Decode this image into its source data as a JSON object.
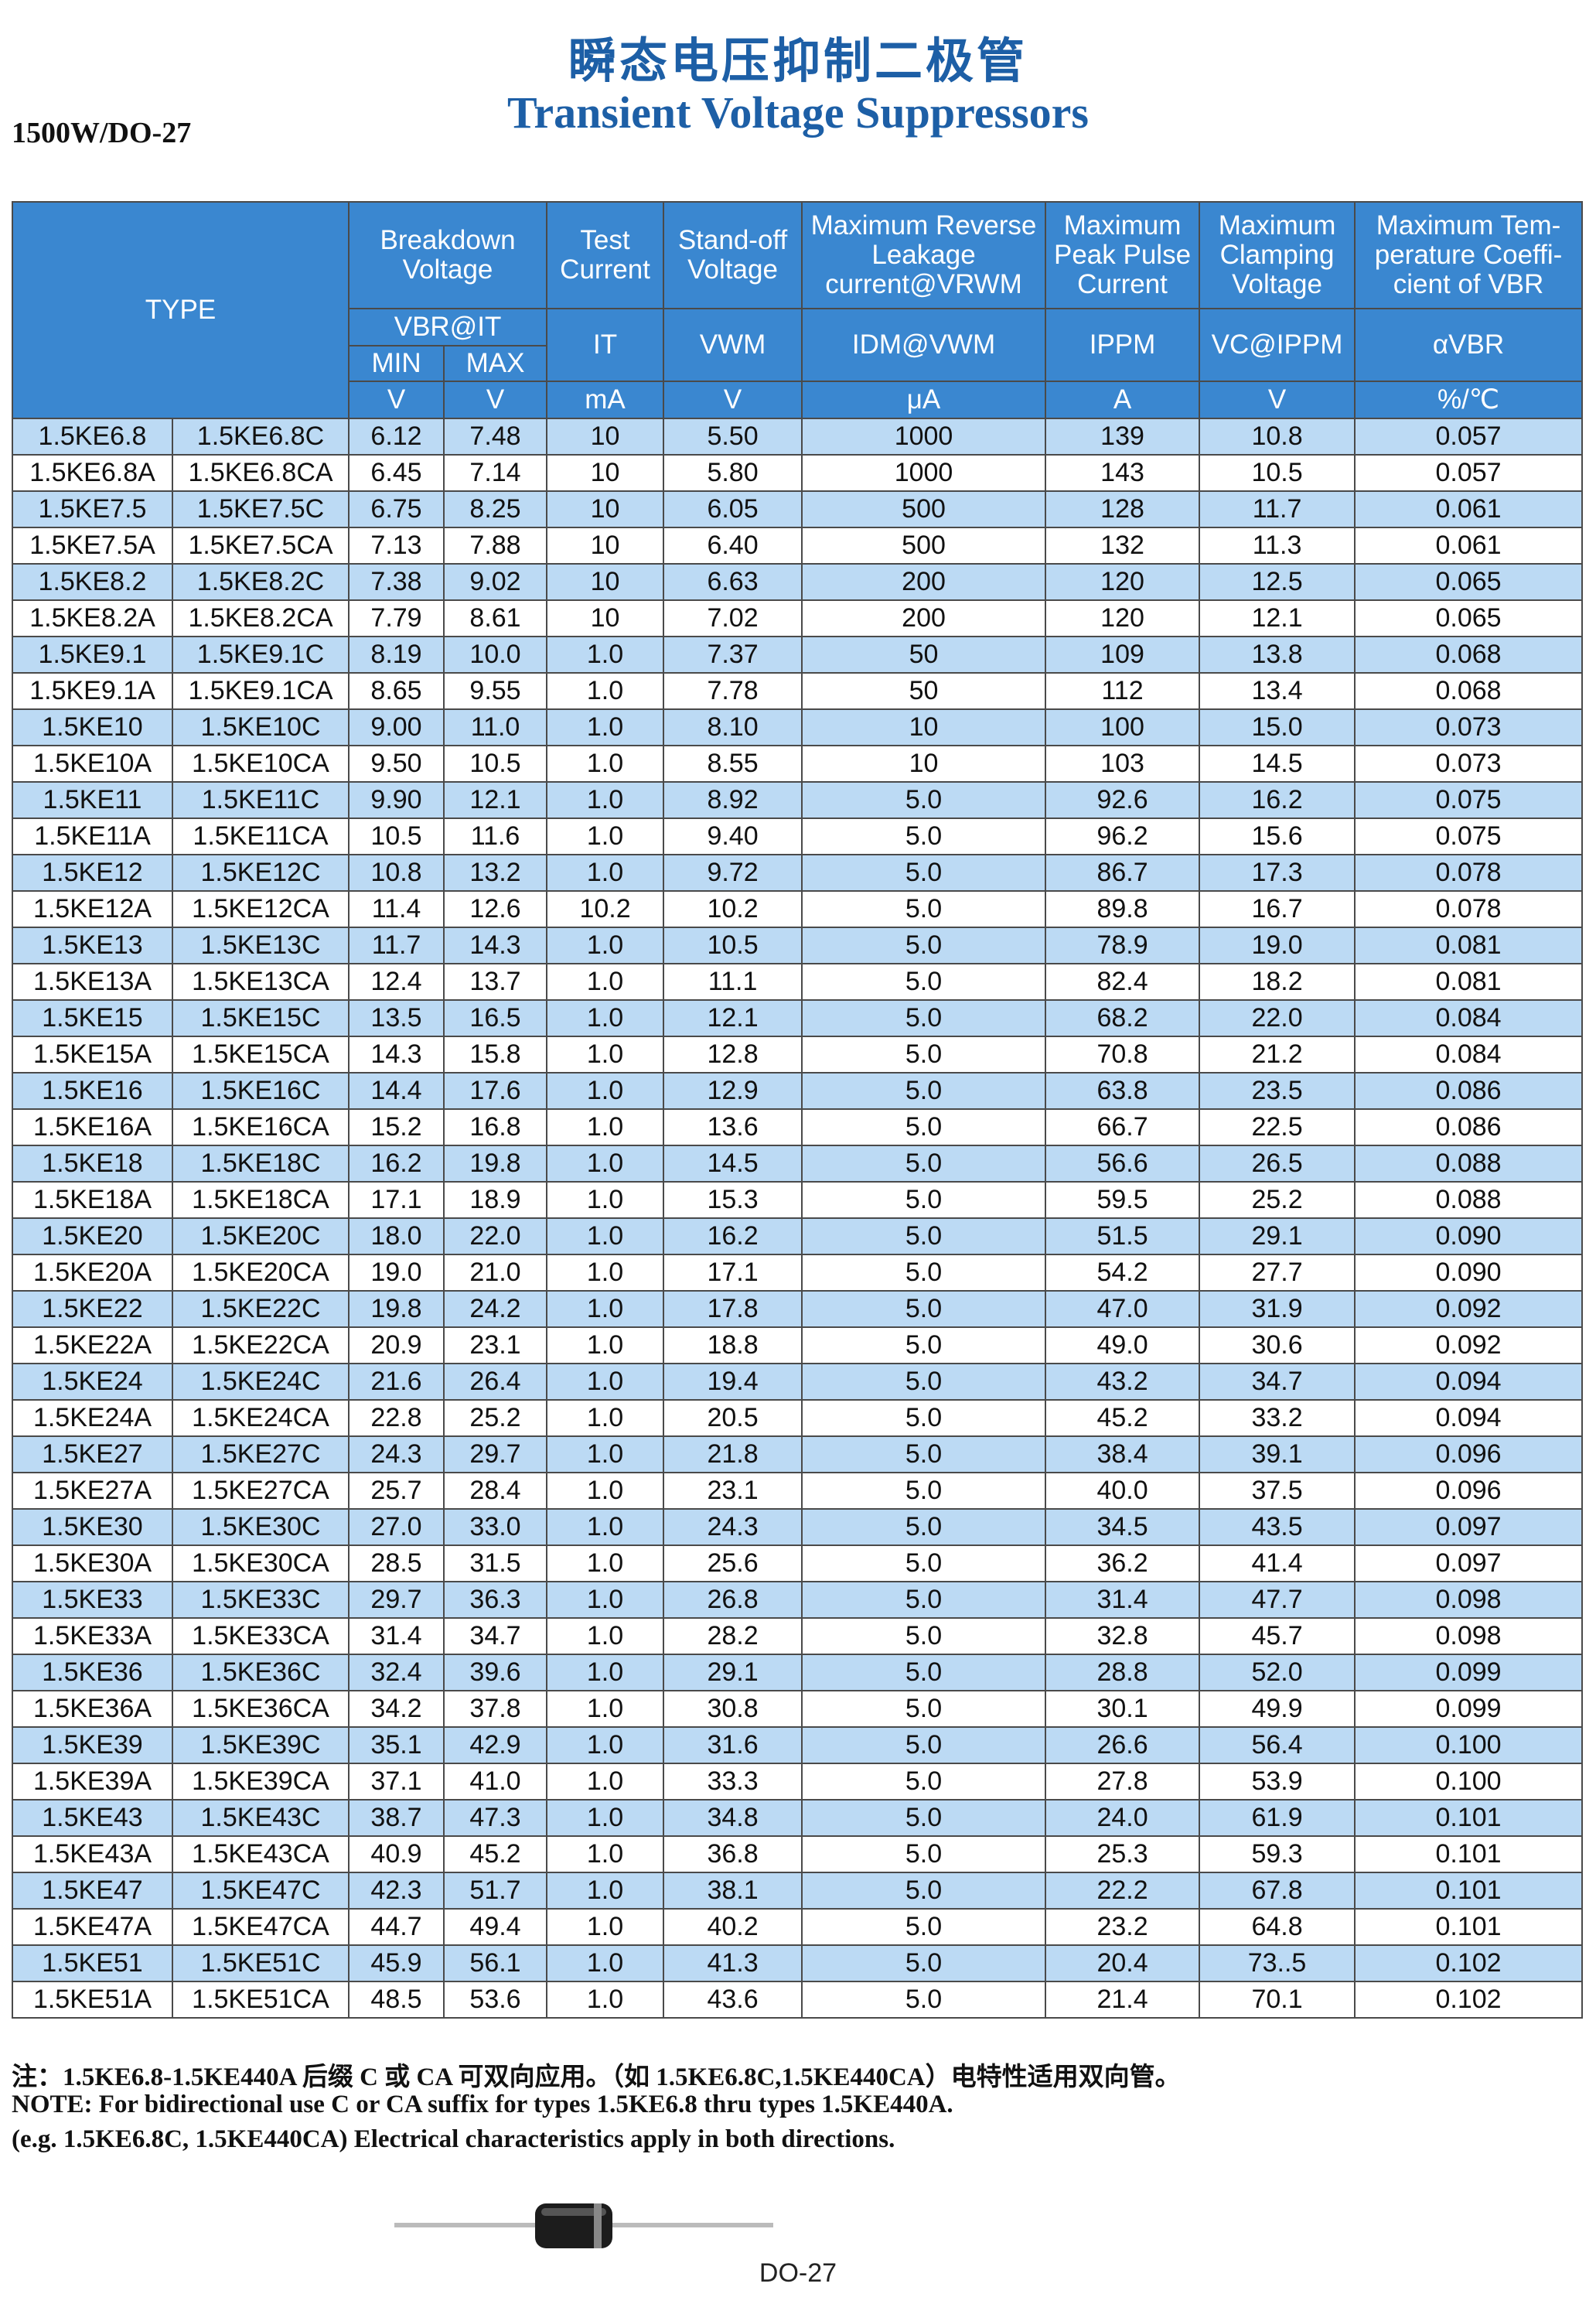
{
  "header": {
    "title_cn": "瞬态电压抑制二极管",
    "title_en": "Transient Voltage Suppressors",
    "model": "1500W/DO-27"
  },
  "table": {
    "head": {
      "type": "TYPE",
      "breakdown": "Breakdown\nVoltage",
      "test": "Test\nCurrent",
      "standoff": "Stand-off\nVoltage",
      "leakage": "Maximum Reverse\nLeakage\ncurrent@VRWM",
      "ippm": "Maximum\nPeak Pulse\nCurrent",
      "clamp": "Maximum\nClamping\nVoltage",
      "coef": "Maximum Tem-\nperature Coeffi-\ncient of VBR",
      "vbr": "VBR@IT",
      "it": "IT",
      "vwm": "VWM",
      "idm": "IDM@VWM",
      "ippm_sym": "IPPM",
      "vc": "VC@IPPM",
      "avbr": "αVBR",
      "min": "MIN",
      "max": "MAX",
      "units": [
        "V",
        "V",
        "mA",
        "V",
        "μA",
        "A",
        "V",
        "%/℃"
      ]
    },
    "rows": [
      [
        "1.5KE6.8",
        "1.5KE6.8C",
        "6.12",
        "7.48",
        "10",
        "5.50",
        "1000",
        "139",
        "10.8",
        "0.057"
      ],
      [
        "1.5KE6.8A",
        "1.5KE6.8CA",
        "6.45",
        "7.14",
        "10",
        "5.80",
        "1000",
        "143",
        "10.5",
        "0.057"
      ],
      [
        "1.5KE7.5",
        "1.5KE7.5C",
        "6.75",
        "8.25",
        "10",
        "6.05",
        "500",
        "128",
        "11.7",
        "0.061"
      ],
      [
        "1.5KE7.5A",
        "1.5KE7.5CA",
        "7.13",
        "7.88",
        "10",
        "6.40",
        "500",
        "132",
        "11.3",
        "0.061"
      ],
      [
        "1.5KE8.2",
        "1.5KE8.2C",
        "7.38",
        "9.02",
        "10",
        "6.63",
        "200",
        "120",
        "12.5",
        "0.065"
      ],
      [
        "1.5KE8.2A",
        "1.5KE8.2CA",
        "7.79",
        "8.61",
        "10",
        "7.02",
        "200",
        "120",
        "12.1",
        "0.065"
      ],
      [
        "1.5KE9.1",
        "1.5KE9.1C",
        "8.19",
        "10.0",
        "1.0",
        "7.37",
        "50",
        "109",
        "13.8",
        "0.068"
      ],
      [
        "1.5KE9.1A",
        "1.5KE9.1CA",
        "8.65",
        "9.55",
        "1.0",
        "7.78",
        "50",
        "112",
        "13.4",
        "0.068"
      ],
      [
        "1.5KE10",
        "1.5KE10C",
        "9.00",
        "11.0",
        "1.0",
        "8.10",
        "10",
        "100",
        "15.0",
        "0.073"
      ],
      [
        "1.5KE10A",
        "1.5KE10CA",
        "9.50",
        "10.5",
        "1.0",
        "8.55",
        "10",
        "103",
        "14.5",
        "0.073"
      ],
      [
        "1.5KE11",
        "1.5KE11C",
        "9.90",
        "12.1",
        "1.0",
        "8.92",
        "5.0",
        "92.6",
        "16.2",
        "0.075"
      ],
      [
        "1.5KE11A",
        "1.5KE11CA",
        "10.5",
        "11.6",
        "1.0",
        "9.40",
        "5.0",
        "96.2",
        "15.6",
        "0.075"
      ],
      [
        "1.5KE12",
        "1.5KE12C",
        "10.8",
        "13.2",
        "1.0",
        "9.72",
        "5.0",
        "86.7",
        "17.3",
        "0.078"
      ],
      [
        "1.5KE12A",
        "1.5KE12CA",
        "11.4",
        "12.6",
        "10.2",
        "10.2",
        "5.0",
        "89.8",
        "16.7",
        "0.078"
      ],
      [
        "1.5KE13",
        "1.5KE13C",
        "11.7",
        "14.3",
        "1.0",
        "10.5",
        "5.0",
        "78.9",
        "19.0",
        "0.081"
      ],
      [
        "1.5KE13A",
        "1.5KE13CA",
        "12.4",
        "13.7",
        "1.0",
        "11.1",
        "5.0",
        "82.4",
        "18.2",
        "0.081"
      ],
      [
        "1.5KE15",
        "1.5KE15C",
        "13.5",
        "16.5",
        "1.0",
        "12.1",
        "5.0",
        "68.2",
        "22.0",
        "0.084"
      ],
      [
        "1.5KE15A",
        "1.5KE15CA",
        "14.3",
        "15.8",
        "1.0",
        "12.8",
        "5.0",
        "70.8",
        "21.2",
        "0.084"
      ],
      [
        "1.5KE16",
        "1.5KE16C",
        "14.4",
        "17.6",
        "1.0",
        "12.9",
        "5.0",
        "63.8",
        "23.5",
        "0.086"
      ],
      [
        "1.5KE16A",
        "1.5KE16CA",
        "15.2",
        "16.8",
        "1.0",
        "13.6",
        "5.0",
        "66.7",
        "22.5",
        "0.086"
      ],
      [
        "1.5KE18",
        "1.5KE18C",
        "16.2",
        "19.8",
        "1.0",
        "14.5",
        "5.0",
        "56.6",
        "26.5",
        "0.088"
      ],
      [
        "1.5KE18A",
        "1.5KE18CA",
        "17.1",
        "18.9",
        "1.0",
        "15.3",
        "5.0",
        "59.5",
        "25.2",
        "0.088"
      ],
      [
        "1.5KE20",
        "1.5KE20C",
        "18.0",
        "22.0",
        "1.0",
        "16.2",
        "5.0",
        "51.5",
        "29.1",
        "0.090"
      ],
      [
        "1.5KE20A",
        "1.5KE20CA",
        "19.0",
        "21.0",
        "1.0",
        "17.1",
        "5.0",
        "54.2",
        "27.7",
        "0.090"
      ],
      [
        "1.5KE22",
        "1.5KE22C",
        "19.8",
        "24.2",
        "1.0",
        "17.8",
        "5.0",
        "47.0",
        "31.9",
        "0.092"
      ],
      [
        "1.5KE22A",
        "1.5KE22CA",
        "20.9",
        "23.1",
        "1.0",
        "18.8",
        "5.0",
        "49.0",
        "30.6",
        "0.092"
      ],
      [
        "1.5KE24",
        "1.5KE24C",
        "21.6",
        "26.4",
        "1.0",
        "19.4",
        "5.0",
        "43.2",
        "34.7",
        "0.094"
      ],
      [
        "1.5KE24A",
        "1.5KE24CA",
        "22.8",
        "25.2",
        "1.0",
        "20.5",
        "5.0",
        "45.2",
        "33.2",
        "0.094"
      ],
      [
        "1.5KE27",
        "1.5KE27C",
        "24.3",
        "29.7",
        "1.0",
        "21.8",
        "5.0",
        "38.4",
        "39.1",
        "0.096"
      ],
      [
        "1.5KE27A",
        "1.5KE27CA",
        "25.7",
        "28.4",
        "1.0",
        "23.1",
        "5.0",
        "40.0",
        "37.5",
        "0.096"
      ],
      [
        "1.5KE30",
        "1.5KE30C",
        "27.0",
        "33.0",
        "1.0",
        "24.3",
        "5.0",
        "34.5",
        "43.5",
        "0.097"
      ],
      [
        "1.5KE30A",
        "1.5KE30CA",
        "28.5",
        "31.5",
        "1.0",
        "25.6",
        "5.0",
        "36.2",
        "41.4",
        "0.097"
      ],
      [
        "1.5KE33",
        "1.5KE33C",
        "29.7",
        "36.3",
        "1.0",
        "26.8",
        "5.0",
        "31.4",
        "47.7",
        "0.098"
      ],
      [
        "1.5KE33A",
        "1.5KE33CA",
        "31.4",
        "34.7",
        "1.0",
        "28.2",
        "5.0",
        "32.8",
        "45.7",
        "0.098"
      ],
      [
        "1.5KE36",
        "1.5KE36C",
        "32.4",
        "39.6",
        "1.0",
        "29.1",
        "5.0",
        "28.8",
        "52.0",
        "0.099"
      ],
      [
        "1.5KE36A",
        "1.5KE36CA",
        "34.2",
        "37.8",
        "1.0",
        "30.8",
        "5.0",
        "30.1",
        "49.9",
        "0.099"
      ],
      [
        "1.5KE39",
        "1.5KE39C",
        "35.1",
        "42.9",
        "1.0",
        "31.6",
        "5.0",
        "26.6",
        "56.4",
        "0.100"
      ],
      [
        "1.5KE39A",
        "1.5KE39CA",
        "37.1",
        "41.0",
        "1.0",
        "33.3",
        "5.0",
        "27.8",
        "53.9",
        "0.100"
      ],
      [
        "1.5KE43",
        "1.5KE43C",
        "38.7",
        "47.3",
        "1.0",
        "34.8",
        "5.0",
        "24.0",
        "61.9",
        "0.101"
      ],
      [
        "1.5KE43A",
        "1.5KE43CA",
        "40.9",
        "45.2",
        "1.0",
        "36.8",
        "5.0",
        "25.3",
        "59.3",
        "0.101"
      ],
      [
        "1.5KE47",
        "1.5KE47C",
        "42.3",
        "51.7",
        "1.0",
        "38.1",
        "5.0",
        "22.2",
        "67.8",
        "0.101"
      ],
      [
        "1.5KE47A",
        "1.5KE47CA",
        "44.7",
        "49.4",
        "1.0",
        "40.2",
        "5.0",
        "23.2",
        "64.8",
        "0.101"
      ],
      [
        "1.5KE51",
        "1.5KE51C",
        "45.9",
        "56.1",
        "1.0",
        "41.3",
        "5.0",
        "20.4",
        "73..5",
        "0.102"
      ],
      [
        "1.5KE51A",
        "1.5KE51CA",
        "48.5",
        "53.6",
        "1.0",
        "43.6",
        "5.0",
        "21.4",
        "70.1",
        "0.102"
      ]
    ]
  },
  "notes": [
    "注：1.5KE6.8-1.5KE440A 后缀 C 或 CA 可双向应用。（如 1.5KE6.8C,1.5KE440CA）电特性适用双向管。",
    "NOTE: For bidirectional use C or CA suffix for types 1.5KE6.8 thru types 1.5KE440A.",
    "(e.g. 1.5KE6.8C, 1.5KE440CA) Electrical characteristics apply in both directions."
  ],
  "package": "DO-27"
}
